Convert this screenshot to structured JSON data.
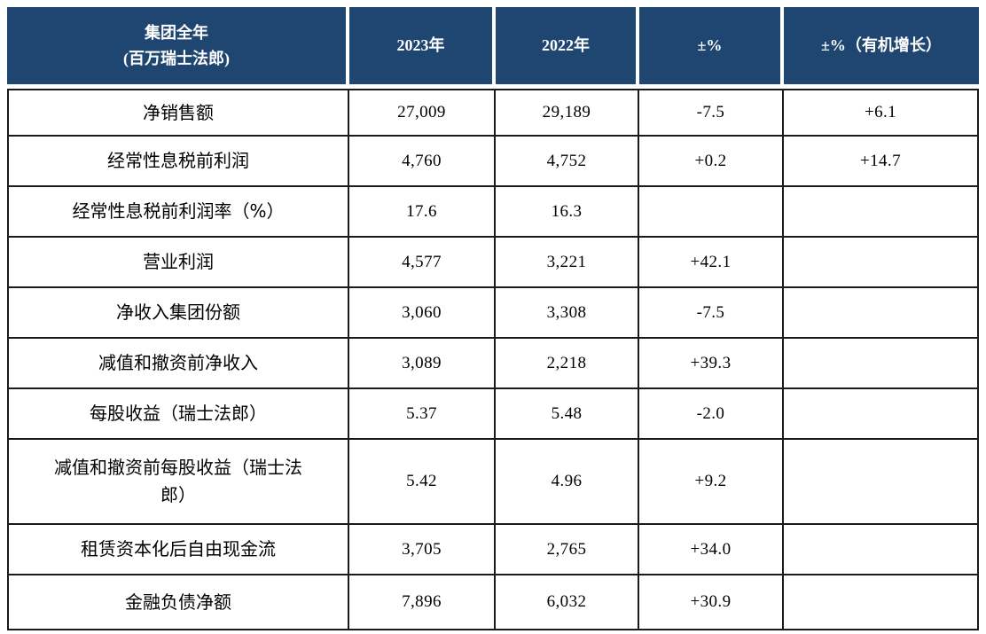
{
  "chart_data": {
    "type": "table",
    "title": "",
    "header": {
      "col1_line1": "集团全年",
      "col1_line2": "(百万瑞士法郎)",
      "col2": "2023年",
      "col3": "2022年",
      "col4": "±%",
      "col5": "±%（有机增长）"
    },
    "columns": [
      "集团全年 (百万瑞士法郎)",
      "2023年",
      "2022年",
      "±%",
      "±%（有机增长）"
    ],
    "rows": [
      {
        "label": "净销售额",
        "v2023": "27,009",
        "v2022": "29,189",
        "pct": "-7.5",
        "organic": "+6.1"
      },
      {
        "label": "经常性息税前利润",
        "v2023": "4,760",
        "v2022": "4,752",
        "pct": "+0.2",
        "organic": "+14.7"
      },
      {
        "label": "经常性息税前利润率（%）",
        "v2023": "17.6",
        "v2022": "16.3",
        "pct": "",
        "organic": ""
      },
      {
        "label": "营业利润",
        "v2023": "4,577",
        "v2022": "3,221",
        "pct": "+42.1",
        "organic": ""
      },
      {
        "label": "净收入集团份额",
        "v2023": "3,060",
        "v2022": "3,308",
        "pct": "-7.5",
        "organic": ""
      },
      {
        "label": "减值和撤资前净收入",
        "v2023": "3,089",
        "v2022": "2,218",
        "pct": "+39.3",
        "organic": ""
      },
      {
        "label": "每股收益（瑞士法郎）",
        "v2023": "5.37",
        "v2022": "5.48",
        "pct": "-2.0",
        "organic": ""
      },
      {
        "label": "减值和撤资前每股收益（瑞士法郎）",
        "v2023": "5.42",
        "v2022": "4.96",
        "pct": "+9.2",
        "organic": ""
      },
      {
        "label": "租赁资本化后自由现金流",
        "v2023": "3,705",
        "v2022": "2,765",
        "pct": "+34.0",
        "organic": ""
      },
      {
        "label": "金融负债净额",
        "v2023": "7,896",
        "v2022": "6,032",
        "pct": "+30.9",
        "organic": ""
      }
    ],
    "colors": {
      "header_bg": "#1F4571",
      "header_text": "#FFFFFF",
      "grid_border": "#1A1A1A",
      "body_text": "#000000",
      "page_bg": "#FFFFFF"
    },
    "layout": {
      "grid": "on",
      "legend": "none"
    }
  }
}
